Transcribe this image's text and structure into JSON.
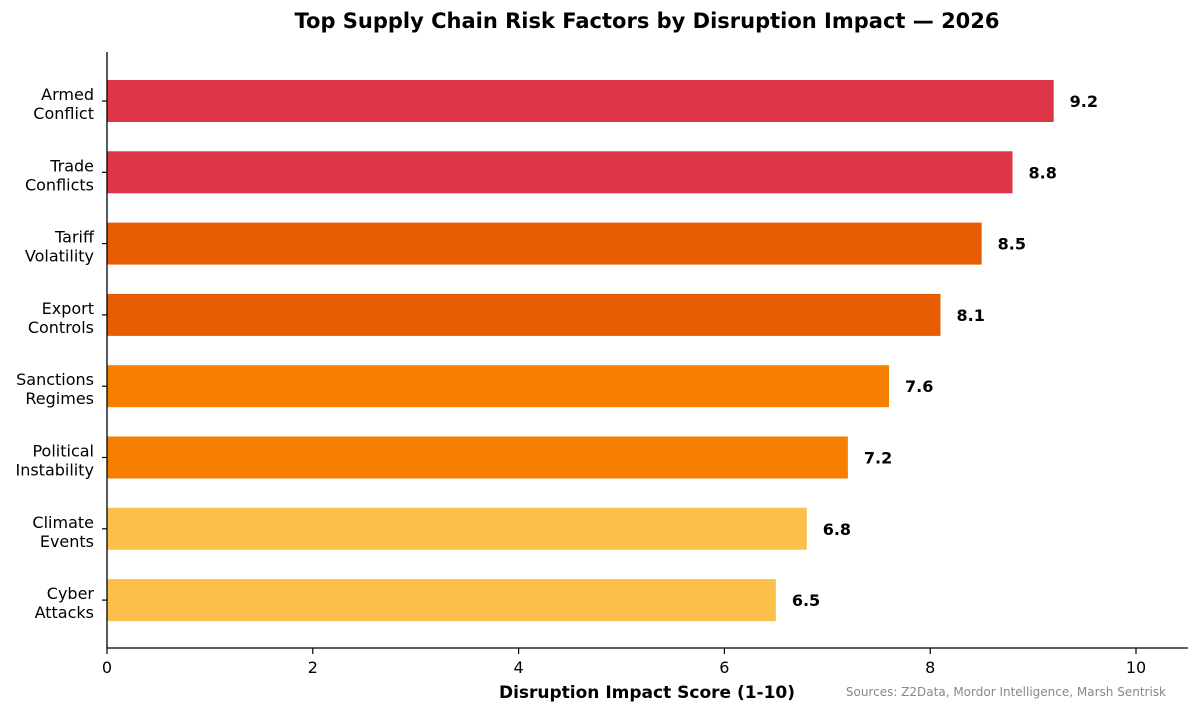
{
  "chart_data": {
    "type": "bar",
    "orientation": "horizontal",
    "title": "Top Supply Chain Risk Factors by Disruption Impact — 2026",
    "xlabel": "Disruption Impact Score (1-10)",
    "ylabel": "",
    "source_note": "Sources: Z2Data, Mordor Intelligence, Marsh Sentrisk",
    "categories": [
      [
        "Armed",
        "Conflict"
      ],
      [
        "Trade",
        "Conflicts"
      ],
      [
        "Tariff",
        "Volatility"
      ],
      [
        "Export",
        "Controls"
      ],
      [
        "Sanctions",
        "Regimes"
      ],
      [
        "Political",
        "Instability"
      ],
      [
        "Climate",
        "Events"
      ],
      [
        "Cyber",
        "Attacks"
      ]
    ],
    "values": [
      9.2,
      8.8,
      8.5,
      8.1,
      7.6,
      7.2,
      6.8,
      6.5
    ],
    "value_labels": [
      "9.2",
      "8.8",
      "8.5",
      "8.1",
      "7.6",
      "7.2",
      "6.8",
      "6.5"
    ],
    "colors": [
      "#dc3545",
      "#dc3545",
      "#e85d04",
      "#e85d04",
      "#f77f00",
      "#f77f00",
      "#fcbf49",
      "#fcbf49"
    ],
    "xlim": [
      0,
      10.5
    ],
    "xticks": [
      0,
      2,
      4,
      6,
      8,
      10
    ],
    "xtick_labels": [
      "0",
      "2",
      "4",
      "6",
      "8",
      "10"
    ],
    "grid": false
  }
}
